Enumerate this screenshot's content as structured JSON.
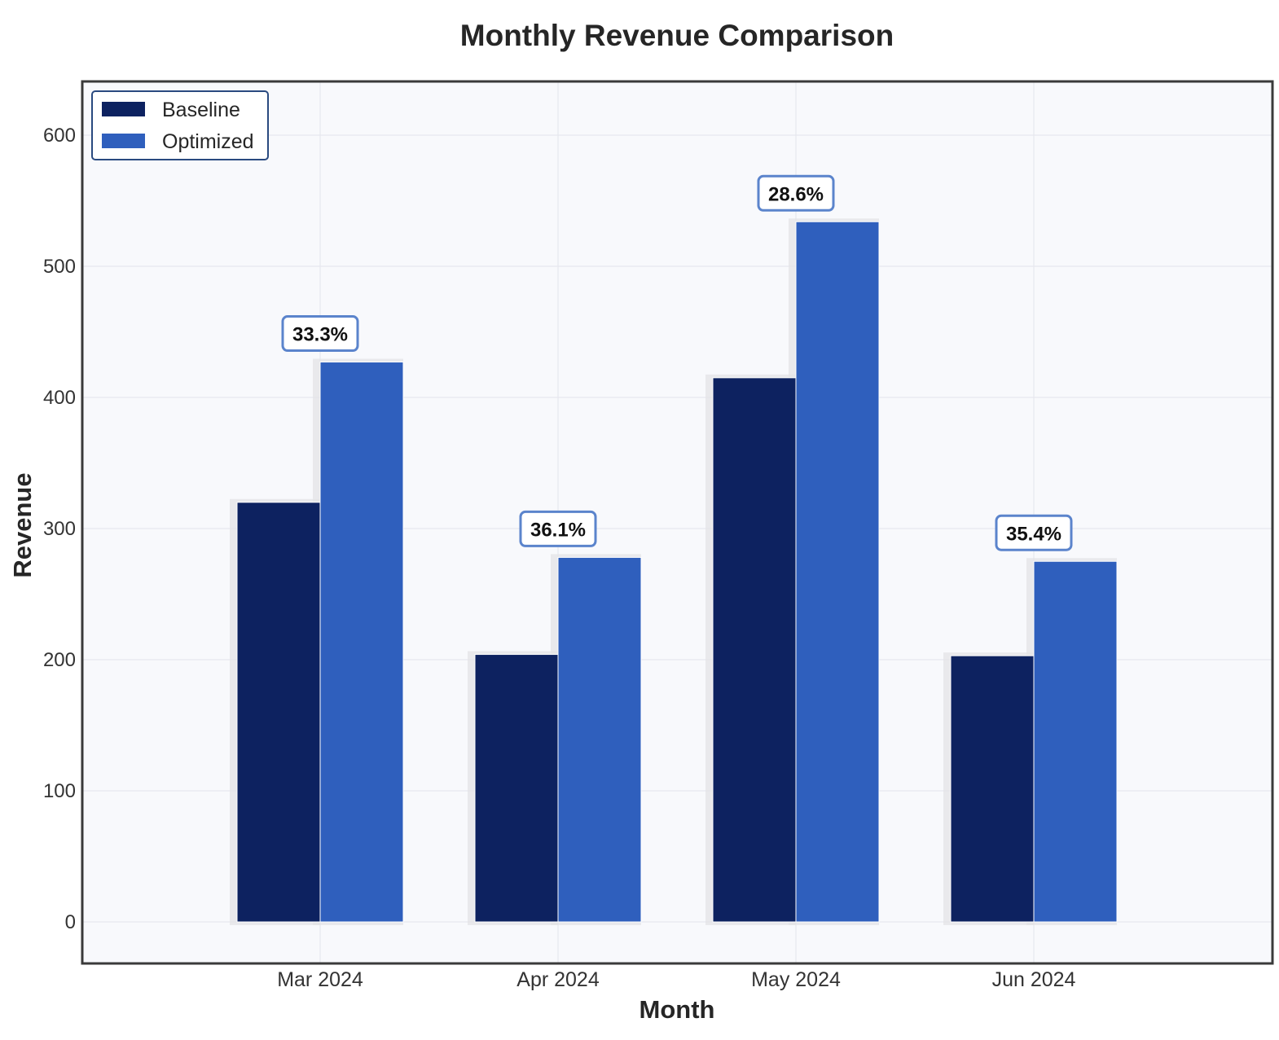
{
  "chart_data": {
    "type": "bar",
    "title": "Monthly Revenue Comparison",
    "xlabel": "Month",
    "ylabel": "Revenue",
    "categories": [
      "Mar 2024",
      "Apr 2024",
      "May 2024",
      "Jun 2024"
    ],
    "ylim": [
      -80,
      640
    ],
    "yticks": [
      0,
      100,
      200,
      300,
      400,
      500,
      600
    ],
    "grid": true,
    "legend_position": "top-left",
    "series": [
      {
        "name": "Baseline",
        "color": "#0d2260",
        "values": [
          320,
          204,
          415,
          203
        ]
      },
      {
        "name": "Optimized",
        "color": "#2f5fbd",
        "values": [
          427,
          278,
          534,
          275
        ]
      }
    ],
    "annotations": [
      "33.3%",
      "36.1%",
      "28.6%",
      "35.4%"
    ],
    "colors": {
      "plot_background": "#f8f9fc",
      "annotation_border": "#5b84cc",
      "legend_border": "#2a4a80",
      "grid": "#e6e8ee",
      "axes_frame": "#3a3a3a"
    }
  }
}
